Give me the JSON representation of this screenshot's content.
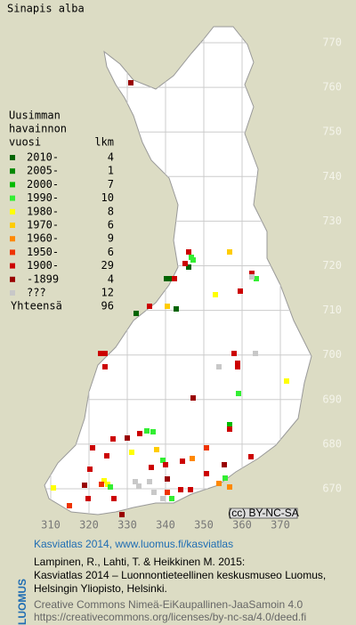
{
  "title": "Sinapis alba",
  "map": {
    "xticks": [
      310,
      320,
      330,
      340,
      350,
      360,
      370
    ],
    "yticks": [
      770,
      760,
      750,
      740,
      730,
      720,
      710,
      700,
      690,
      680,
      670
    ],
    "license_badge": "(cc) BY-NC-SA"
  },
  "legend": {
    "heading": [
      "Uusimman",
      "havainnon",
      "vuosi"
    ],
    "count_header": "lkm",
    "rows": [
      {
        "label": "2010-",
        "count": 4,
        "color": "#006400"
      },
      {
        "label": "2005-",
        "count": 1,
        "color": "#008800"
      },
      {
        "label": "2000-",
        "count": 7,
        "color": "#00bb00"
      },
      {
        "label": "1990-",
        "count": 10,
        "color": "#33ee33"
      },
      {
        "label": "1980-",
        "count": 8,
        "color": "#ffff00"
      },
      {
        "label": "1970-",
        "count": 6,
        "color": "#ffcc00"
      },
      {
        "label": "1960-",
        "count": 9,
        "color": "#ff8800"
      },
      {
        "label": "1950-",
        "count": 6,
        "color": "#ee3300"
      },
      {
        "label": "1900-",
        "count": 29,
        "color": "#cc0000"
      },
      {
        "label": "-1899",
        "count": 4,
        "color": "#990000"
      },
      {
        "label": "???",
        "count": 12,
        "color": "#c8c8c8"
      }
    ],
    "total_label": "Yhteensä",
    "total": 96
  },
  "footer": {
    "brand": "LUOMUS",
    "headline": "Kasviatlas 2014, www.luomus.fi/kasviatlas",
    "citation": [
      "Lampinen, R., Lahti, T. & Heikkinen M. 2015:",
      "Kasviatlas 2014 – Luonnontieteellinen keskusmuseo Luomus,",
      "Helsingin Yliopisto, Helsinki."
    ],
    "license": [
      "Creative Commons Nimeä-EiKaupallinen-JaaSamoin 4.0",
      "https://creativecommons.org/licenses/by-nc-sa/4.0/deed.fi"
    ]
  }
}
